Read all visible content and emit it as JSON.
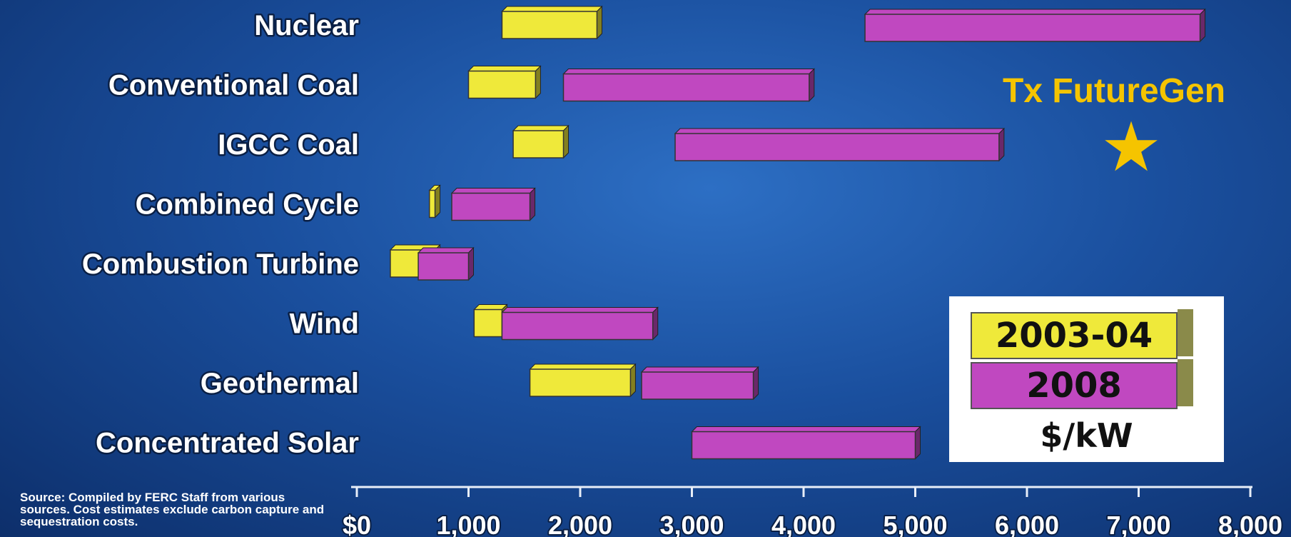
{
  "chart_data": {
    "type": "bar",
    "orientation": "horizontal",
    "value_format": "range",
    "categories": [
      "Nuclear",
      "Conventional Coal",
      "IGCC Coal",
      "Combined Cycle",
      "Combustion Turbine",
      "Wind",
      "Geothermal",
      "Concentrated Solar"
    ],
    "series": [
      {
        "name": "2003-04",
        "color": "#efe93a",
        "ranges": [
          [
            1300,
            2150
          ],
          [
            1000,
            1600
          ],
          [
            1400,
            1850
          ],
          [
            650,
            700
          ],
          [
            300,
            700
          ],
          [
            1050,
            1300
          ],
          [
            1550,
            2450
          ],
          null
        ]
      },
      {
        "name": "2008",
        "color": "#c048c0",
        "ranges": [
          [
            4550,
            7550
          ],
          [
            1850,
            4050
          ],
          [
            2850,
            5750
          ],
          [
            850,
            1550
          ],
          [
            550,
            1000
          ],
          [
            1300,
            2650
          ],
          [
            2550,
            3550
          ],
          [
            3000,
            5000
          ]
        ]
      }
    ],
    "xlim": [
      0,
      8000
    ],
    "xticks": [
      0,
      1000,
      2000,
      3000,
      4000,
      5000,
      6000,
      7000,
      8000
    ],
    "xtick_labels": [
      "$0",
      "1,000",
      "2,000",
      "3,000",
      "4,000",
      "5,000",
      "6,000",
      "7,000",
      "8,000"
    ],
    "title": "",
    "xlabel": "",
    "ylabel": "",
    "unit": "$/kW",
    "legend_position": "bottom-right",
    "grid": false
  },
  "annotation": {
    "label": "Tx FutureGen",
    "symbol": "★",
    "color": "#f5c400"
  },
  "legend": {
    "items": [
      "2003-04",
      "2008"
    ],
    "unit": "$/kW"
  },
  "source_note": "Source: Compiled by FERC Staff from various sources. Cost estimates exclude carbon capture and sequestration costs."
}
